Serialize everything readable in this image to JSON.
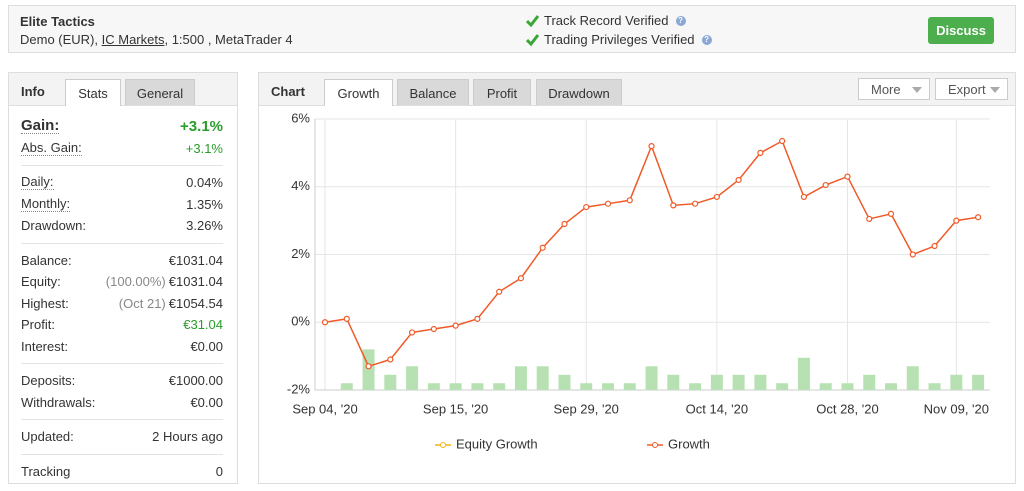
{
  "header": {
    "title": "Elite Tactics",
    "account_type": "Demo (EUR), ",
    "broker": "IC Markets",
    "details": ", 1:500 , MetaTrader 4",
    "verifications": [
      "Track Record Verified",
      "Trading Privileges Verified"
    ],
    "button": "Discuss"
  },
  "left_panel": {
    "title": "Info",
    "tabs": [
      "Stats",
      "General"
    ],
    "stats": [
      [
        {
          "label": "Gain:",
          "value": "+3.1%"
        },
        {
          "label": "Abs. Gain:",
          "value": "+3.1%"
        }
      ],
      [
        {
          "label": "Daily:",
          "value": "0.04%"
        },
        {
          "label": "Monthly:",
          "value": "1.35%"
        },
        {
          "label": "Drawdown:",
          "value": "3.26%"
        }
      ],
      [
        {
          "label": "Balance:",
          "value": "€1031.04"
        },
        {
          "label": "Equity:",
          "note": "(100.00%)",
          "value": "€1031.04"
        },
        {
          "label": "Highest:",
          "note": "(Oct 21)",
          "value": "€1054.54"
        },
        {
          "label": "Profit:",
          "value": "€31.04"
        },
        {
          "label": "Interest:",
          "value": "€0.00"
        }
      ],
      [
        {
          "label": "Deposits:",
          "value": "€1000.00"
        },
        {
          "label": "Withdrawals:",
          "value": "€0.00"
        }
      ],
      [
        {
          "label": "Updated:",
          "value": "2 Hours ago"
        }
      ],
      [
        {
          "label": "Tracking",
          "value": "0"
        }
      ]
    ]
  },
  "chart_panel": {
    "title": "Chart",
    "tabs": [
      "Growth",
      "Balance",
      "Profit",
      "Drawdown"
    ],
    "buttons": [
      "More",
      "Export"
    ]
  },
  "chart_data": {
    "type": "line",
    "categories": [
      "Sep 04, '20",
      null,
      null,
      null,
      null,
      null,
      "Sep 15, '20",
      null,
      null,
      null,
      null,
      null,
      "Sep 29, '20",
      null,
      null,
      null,
      null,
      null,
      "Oct 14, '20",
      null,
      null,
      null,
      null,
      null,
      "Oct 28, '20",
      null,
      null,
      null,
      null,
      "Nov 09, '20",
      null
    ],
    "series": [
      {
        "name": "Equity Growth",
        "color": "#f5b316",
        "values": [
          null,
          null,
          null,
          null,
          null,
          null,
          null,
          null,
          null,
          null,
          null,
          null,
          null,
          null,
          null,
          null,
          null,
          null,
          null,
          null,
          null,
          null,
          null,
          null,
          null,
          null,
          null,
          null,
          null,
          null,
          null
        ]
      },
      {
        "name": "Growth",
        "color": "#f05a28",
        "values": [
          0,
          0.1,
          -1.3,
          -1.1,
          -0.3,
          -0.2,
          -0.1,
          0.1,
          0.9,
          1.3,
          2.2,
          2.9,
          3.4,
          3.5,
          3.6,
          5.2,
          3.45,
          3.5,
          3.7,
          4.2,
          5.0,
          5.35,
          3.7,
          4.05,
          4.3,
          3.05,
          3.2,
          2.0,
          2.25,
          3.0,
          3.1
        ]
      },
      {
        "type": "bar",
        "color": "#b7e1b2",
        "values": [
          null,
          -1.8,
          -0.8,
          -1.55,
          -1.3,
          -1.8,
          -1.8,
          -1.8,
          -1.8,
          -1.3,
          -1.3,
          -1.55,
          -1.8,
          -1.8,
          -1.8,
          -1.3,
          -1.55,
          -1.8,
          -1.55,
          -1.55,
          -1.55,
          -1.8,
          -1.05,
          -1.8,
          -1.8,
          -1.55,
          -1.8,
          -1.3,
          -1.8,
          -1.55,
          -1.55
        ]
      }
    ],
    "ylim": [
      -2,
      6
    ],
    "yticks": [
      {
        "value": -2,
        "label": "-2%"
      },
      {
        "value": 0,
        "label": "0%"
      },
      {
        "value": 2,
        "label": "2%"
      },
      {
        "value": 4,
        "label": "4%"
      },
      {
        "value": 6,
        "label": "6%"
      }
    ],
    "grid": true
  }
}
